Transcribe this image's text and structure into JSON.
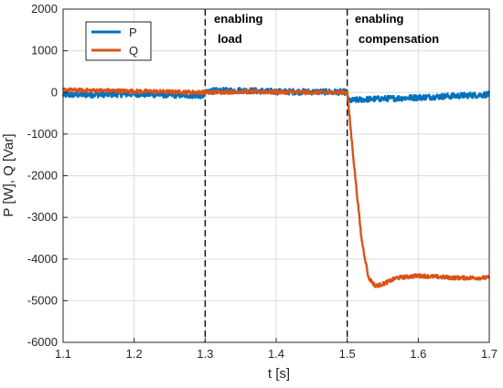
{
  "chart_data": {
    "type": "line",
    "title": "",
    "xlabel": "t [s]",
    "ylabel": "P [W], Q [Var]",
    "xlim": [
      1.1,
      1.7
    ],
    "ylim": [
      -6000,
      2000
    ],
    "xticks": [
      1.1,
      1.2,
      1.3,
      1.4,
      1.5,
      1.6,
      1.7
    ],
    "yticks": [
      -6000,
      -5000,
      -4000,
      -3000,
      -2000,
      -1000,
      0,
      1000,
      2000
    ],
    "xtick_labels": [
      "1.1",
      "1.2",
      "1.3",
      "1.4",
      "1.5",
      "1.6",
      "1.7"
    ],
    "ytick_labels": [
      "-6000",
      "-5000",
      "-4000",
      "-3000",
      "-2000",
      "-1000",
      "0",
      "1000",
      "2000"
    ],
    "grid": true,
    "legend_position": "top-left",
    "series": [
      {
        "name": "P",
        "color": "#0072BD",
        "noise": 70,
        "x": [
          1.1,
          1.2,
          1.299,
          1.301,
          1.35,
          1.4,
          1.499,
          1.502,
          1.52,
          1.6,
          1.7
        ],
        "y": [
          -60,
          -40,
          -80,
          30,
          50,
          20,
          10,
          -200,
          -170,
          -120,
          -50
        ]
      },
      {
        "name": "Q",
        "color": "#D95319",
        "noise": 45,
        "x": [
          1.1,
          1.2,
          1.3,
          1.35,
          1.4,
          1.5,
          1.51,
          1.52,
          1.53,
          1.54,
          1.55,
          1.57,
          1.6,
          1.65,
          1.7
        ],
        "y": [
          60,
          30,
          0,
          20,
          10,
          0,
          -1800,
          -3500,
          -4450,
          -4650,
          -4600,
          -4450,
          -4400,
          -4450,
          -4450
        ]
      }
    ],
    "vlines": [
      {
        "x": 1.3,
        "style": "dashed",
        "color": "#000000"
      },
      {
        "x": 1.5,
        "style": "dashed",
        "color": "#000000"
      }
    ],
    "annotations": [
      {
        "line1": "enabling",
        "line2": "load",
        "x": 1.3
      },
      {
        "line1": "enabling",
        "line2": "compensation",
        "x": 1.5
      }
    ]
  }
}
